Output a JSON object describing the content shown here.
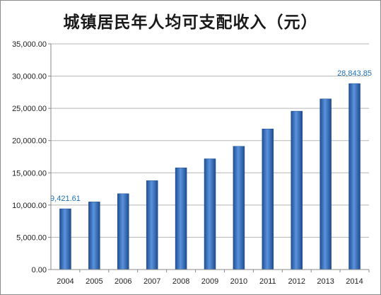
{
  "chart_data": {
    "type": "bar",
    "title": "城镇居民年人均可支配收入（元）",
    "categories": [
      "2004",
      "2005",
      "2006",
      "2007",
      "2008",
      "2009",
      "2010",
      "2011",
      "2012",
      "2013",
      "2014"
    ],
    "values": [
      9421.61,
      10493.0,
      11759.5,
      13785.8,
      15780.8,
      17174.7,
      19109.4,
      21809.8,
      24564.7,
      26467.0,
      28843.85
    ],
    "ylim": [
      0,
      35000
    ],
    "yticks": [
      "0.00",
      "5,000.00",
      "10,000.00",
      "15,000.00",
      "20,000.00",
      "25,000.00",
      "30,000.00",
      "35,000.00"
    ],
    "data_labels": [
      {
        "index": 0,
        "text": "9,421.61"
      },
      {
        "index": 10,
        "text": "28,843.85"
      }
    ],
    "grid": true,
    "legend": "none",
    "bar_color": "#3a75c4",
    "label_color": "#1f6fb5"
  }
}
